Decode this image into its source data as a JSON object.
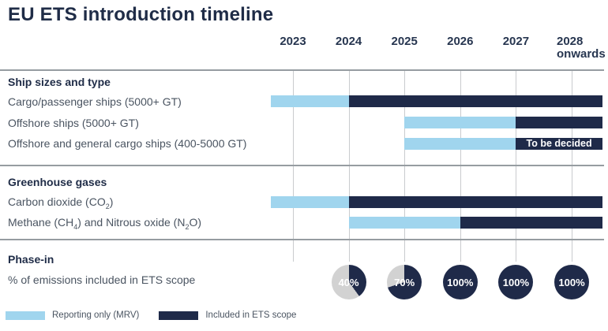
{
  "title": "EU ETS introduction timeline",
  "colors": {
    "navy": "#1f2a49",
    "light_blue": "#a0d5ee",
    "pie_gray": "#d2d2d2",
    "gridline": "#c9cbce",
    "separator": "#969ca1",
    "heading_text": "#1f2c47",
    "label_text": "#4a5461",
    "year_text": "#273650"
  },
  "legend": {
    "items": [
      {
        "key": "reporting",
        "label": "Reporting only (MRV)"
      },
      {
        "key": "ets",
        "label": "Included in ETS scope"
      }
    ]
  },
  "chart_data": {
    "type": "bar",
    "subtype": "gantt-timeline",
    "title": "EU ETS introduction timeline",
    "x_axis": {
      "unit": "year",
      "years": [
        {
          "label": "2023",
          "year": 2023
        },
        {
          "label": "2024",
          "year": 2024
        },
        {
          "label": "2025",
          "year": 2025
        },
        {
          "label": "2026",
          "year": 2026
        },
        {
          "label": "2027",
          "year": 2027
        },
        {
          "label": "2028",
          "sublabel": "onwards",
          "year": 2028
        }
      ]
    },
    "legend": [
      "Reporting only (MRV)",
      "Included in ETS scope"
    ],
    "sections": [
      {
        "header": "Ship sizes and type",
        "rows": [
          {
            "label": "Cargo/passenger ships (5000+ GT)",
            "label_parts": [
              {
                "text": "Cargo/passenger ships (5000+ GT)"
              }
            ],
            "segments": [
              {
                "kind": "reporting",
                "name": "Reporting only (MRV)",
                "from": 2022.6,
                "to": 2024
              },
              {
                "kind": "ets",
                "name": "Included in ETS scope",
                "from": 2024,
                "to": 2028.55
              }
            ]
          },
          {
            "label": "Offshore ships (5000+ GT)",
            "label_parts": [
              {
                "text": "Offshore ships (5000+ GT)"
              }
            ],
            "segments": [
              {
                "kind": "reporting",
                "name": "Reporting only (MRV)",
                "from": 2025,
                "to": 2027
              },
              {
                "kind": "ets",
                "name": "Included in ETS scope",
                "from": 2027,
                "to": 2028.55
              }
            ]
          },
          {
            "label": "Offshore and general cargo ships (400-5000 GT)",
            "label_parts": [
              {
                "text": "Offshore and general cargo ships (400-5000 GT)"
              }
            ],
            "segments": [
              {
                "kind": "reporting",
                "name": "Reporting only (MRV)",
                "from": 2025,
                "to": 2027
              },
              {
                "kind": "ets",
                "name": "Included in ETS scope",
                "from": 2027,
                "to": 2028.55,
                "overlay_label": "To be decided"
              }
            ]
          }
        ]
      },
      {
        "header": "Greenhouse gases",
        "rows": [
          {
            "label": "Carbon dioxide (CO2)",
            "label_parts": [
              {
                "text": "Carbon dioxide (CO"
              },
              {
                "text": "2",
                "sub": true
              },
              {
                "text": ")"
              }
            ],
            "segments": [
              {
                "kind": "reporting",
                "name": "Reporting only (MRV)",
                "from": 2022.6,
                "to": 2024
              },
              {
                "kind": "ets",
                "name": "Included in ETS scope",
                "from": 2024,
                "to": 2028.55
              }
            ]
          },
          {
            "label": "Methane (CH4) and Nitrous oxide (N2O)",
            "label_parts": [
              {
                "text": "Methane (CH"
              },
              {
                "text": "4",
                "sub": true
              },
              {
                "text": ") and Nitrous oxide (N"
              },
              {
                "text": "2",
                "sub": true
              },
              {
                "text": "O)"
              }
            ],
            "segments": [
              {
                "kind": "reporting",
                "name": "Reporting only (MRV)",
                "from": 2024,
                "to": 2026
              },
              {
                "kind": "ets",
                "name": "Included in ETS scope",
                "from": 2026,
                "to": 2028.55
              }
            ]
          }
        ]
      },
      {
        "header": "Phase-in",
        "rows": [
          {
            "label": "% of emissions included in ETS scope",
            "label_parts": [
              {
                "text": "% of emissions included in ETS scope"
              }
            ],
            "circles": [
              {
                "year": 2024,
                "label": "40%",
                "pct": 40
              },
              {
                "year": 2025,
                "label": "70%",
                "pct": 70
              },
              {
                "year": 2026,
                "label": "100%",
                "pct": 100
              },
              {
                "year": 2027,
                "label": "100%",
                "pct": 100
              },
              {
                "year": 2028,
                "label": "100%",
                "pct": 100
              }
            ]
          }
        ]
      }
    ]
  }
}
